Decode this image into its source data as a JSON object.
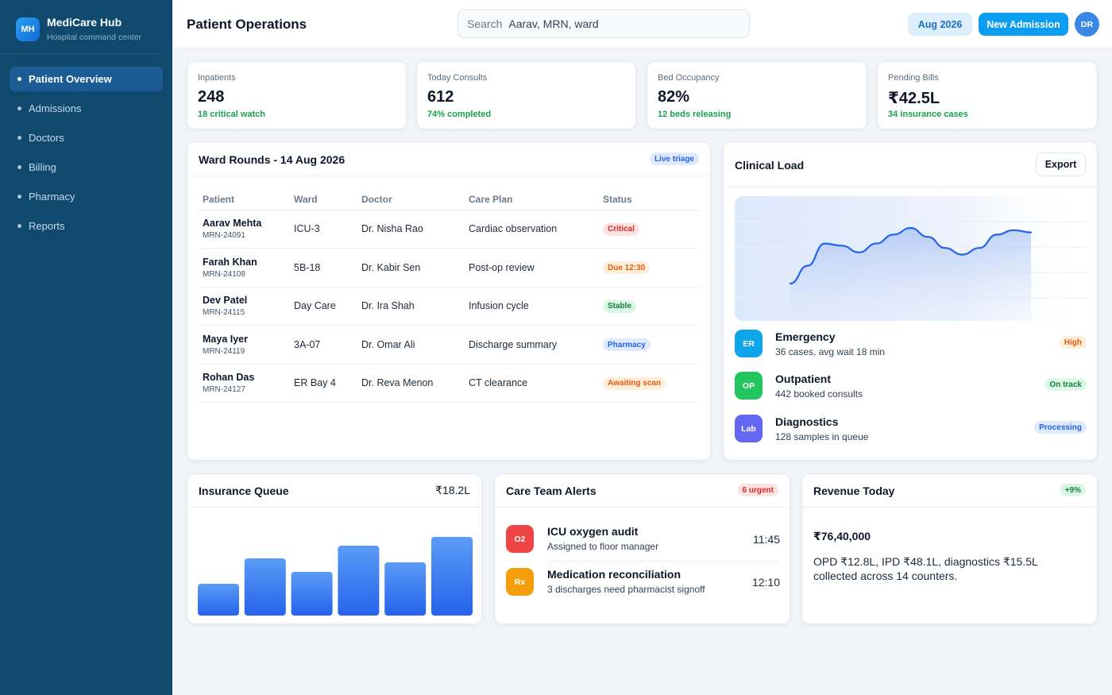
{
  "app": {
    "logo_initials": "MH",
    "name": "MediCare Hub",
    "subtitle": "Hospital command center"
  },
  "sidebar": {
    "items": [
      {
        "label": "Patient Overview",
        "active": true
      },
      {
        "label": "Admissions"
      },
      {
        "label": "Doctors"
      },
      {
        "label": "Billing"
      },
      {
        "label": "Pharmacy"
      },
      {
        "label": "Reports"
      }
    ]
  },
  "header": {
    "title": "Patient Operations",
    "search_label": "Search",
    "search_placeholder": "Aarav, MRN, ward",
    "month": "Aug 2026",
    "new_admission": "New Admission",
    "avatar": "DR"
  },
  "kpis": [
    {
      "label": "Inpatients",
      "value": "248",
      "sub": "18 critical watch"
    },
    {
      "label": "Today Consults",
      "value": "612",
      "sub": "74% completed"
    },
    {
      "label": "Bed Occupancy",
      "value": "82%",
      "sub": "12 beds releasing"
    },
    {
      "label": "Pending Bills",
      "value": "₹42.5L",
      "sub": "34 insurance cases"
    }
  ],
  "ward": {
    "title": "Ward Rounds - 14 Aug 2026",
    "badge": "Live triage",
    "columns": [
      "Patient",
      "Ward",
      "Doctor",
      "Care Plan",
      "Status"
    ],
    "rows": [
      {
        "name": "Aarav Mehta",
        "mrn": "MRN-24091",
        "ward": "ICU-3",
        "doctor": "Dr. Nisha Rao",
        "plan": "Cardiac observation",
        "status": "Critical",
        "tone": "red"
      },
      {
        "name": "Farah Khan",
        "mrn": "MRN-24108",
        "ward": "5B-18",
        "doctor": "Dr. Kabir Sen",
        "plan": "Post-op review",
        "status": "Due 12:30",
        "tone": "orange"
      },
      {
        "name": "Dev Patel",
        "mrn": "MRN-24115",
        "ward": "Day Care",
        "doctor": "Dr. Ira Shah",
        "plan": "Infusion cycle",
        "status": "Stable",
        "tone": "green"
      },
      {
        "name": "Maya Iyer",
        "mrn": "MRN-24119",
        "ward": "3A-07",
        "doctor": "Dr. Omar Ali",
        "plan": "Discharge summary",
        "status": "Pharmacy",
        "tone": "blue"
      },
      {
        "name": "Rohan Das",
        "mrn": "MRN-24127",
        "ward": "ER Bay 4",
        "doctor": "Dr. Reva Menon",
        "plan": "CT clearance",
        "status": "Awaiting scan",
        "tone": "orange"
      }
    ]
  },
  "clinical": {
    "title": "Clinical Load",
    "export": "Export",
    "trend": [
      28,
      20,
      10,
      11,
      14,
      10,
      6,
      3,
      7,
      12,
      15,
      12,
      6,
      4,
      5
    ],
    "items": [
      {
        "icon": "ER",
        "title": "Emergency",
        "sub": "36 cases, avg wait 18 min",
        "badge": "High",
        "tone": "orange",
        "color": "#0ea5e9"
      },
      {
        "icon": "OP",
        "title": "Outpatient",
        "sub": "442 booked consults",
        "badge": "On track",
        "tone": "green",
        "color": "#22c55e"
      },
      {
        "icon": "Lab",
        "title": "Diagnostics",
        "sub": "128 samples in queue",
        "badge": "Processing",
        "tone": "blue",
        "color": "#6366f1"
      }
    ]
  },
  "insurance": {
    "title": "Insurance Queue",
    "total": "₹18.2L",
    "bars": [
      40,
      72,
      55,
      88,
      67,
      99
    ]
  },
  "alerts": {
    "title": "Care Team Alerts",
    "badge": "6 urgent",
    "items": [
      {
        "icon": "O2",
        "title": "ICU oxygen audit",
        "sub": "Assigned to floor manager",
        "time": "11:45",
        "color": "#ef4444"
      },
      {
        "icon": "Rx",
        "title": "Medication reconciliation",
        "sub": "3 discharges need pharmacist signoff",
        "time": "12:10",
        "color": "#f59e0b"
      }
    ]
  },
  "revenue": {
    "title": "Revenue Today",
    "badge": "+9%",
    "amount": "₹76,40,000",
    "detail": "OPD ₹12.8L, IPD ₹48.1L, diagnostics ₹15.5L collected across 14 counters."
  },
  "tones": {
    "red": {
      "bg": "#fde2e2",
      "fg": "#dc2626"
    },
    "orange": {
      "bg": "#feeedc",
      "fg": "#ea580c"
    },
    "green": {
      "bg": "#dcf7e6",
      "fg": "#15803d"
    },
    "blue": {
      "bg": "#dfeafe",
      "fg": "#2563eb"
    }
  }
}
